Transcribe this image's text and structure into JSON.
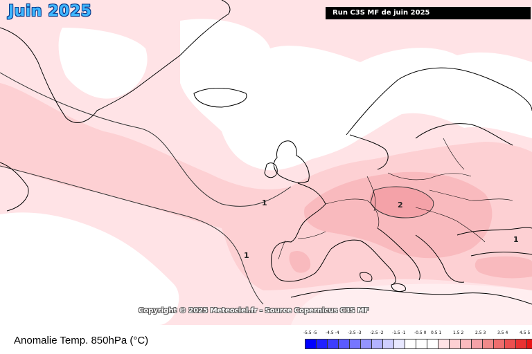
{
  "header": {
    "title": "Juin 2025",
    "run_info": "Run C3S MF de juin 2025"
  },
  "map": {
    "copyright": "Copyright © 2025 Meteociel.fr - Source Copernicus C3S MF",
    "contour_labels": [
      "1",
      "1",
      "2",
      "1"
    ],
    "colors": {
      "ocean_neutral": "#ffffff",
      "anomaly_0_5_1": "#ffe3e6",
      "anomaly_1_1_5": "#fdd0d3",
      "anomaly_1_5_2": "#f9babe",
      "anomaly_2_2_5": "#f4a2a8",
      "coastline": "#000000"
    }
  },
  "footer": {
    "quantity_label": "Anomalie Temp. 850hPa (°C)"
  },
  "legend": {
    "labels": [
      "-5.5 -5",
      "-4.5 -4",
      "-3.5 -3",
      "-2.5 -2",
      "-1.5 -1",
      "-0.5 0",
      "0.5 1",
      "1.5 2",
      "2.5 3",
      "3.5 4",
      "4.5 5"
    ],
    "colors": [
      "#0000ff",
      "#2020ff",
      "#3d3dff",
      "#5a5aff",
      "#7676ff",
      "#9494ff",
      "#b3b3ff",
      "#cfcfff",
      "#e8e8ff",
      "#ffffff",
      "#ffffff",
      "#ffffff",
      "#ffe3e6",
      "#fdd0d3",
      "#f9babe",
      "#f4a2a8",
      "#f08a8a",
      "#ee6e6e",
      "#ec5050",
      "#ea3232",
      "#e81515",
      "#ff0000"
    ]
  }
}
